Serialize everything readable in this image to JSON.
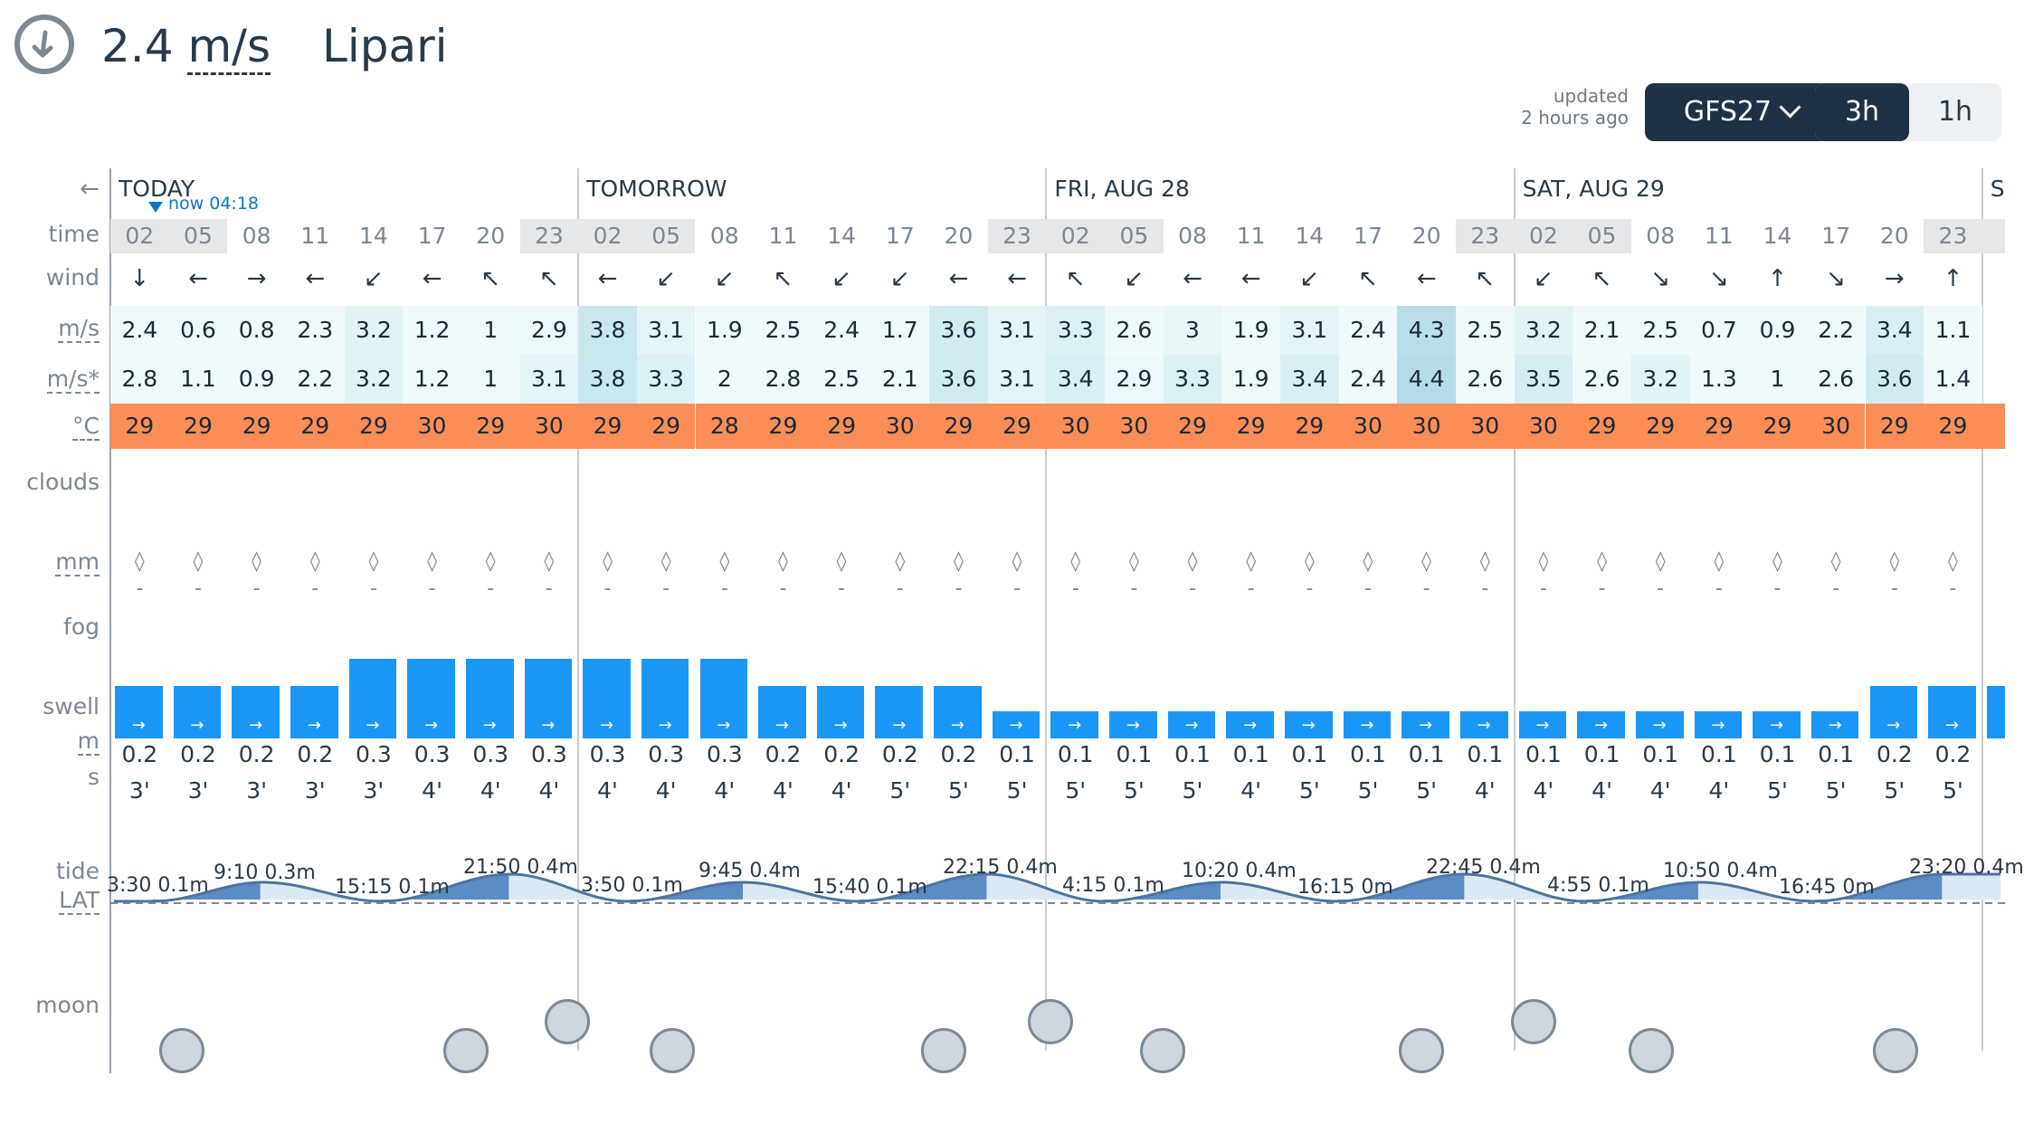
{
  "header": {
    "speed_value": "2.4",
    "speed_unit": "m/s",
    "place": "Lipari",
    "updated_line1": "updated",
    "updated_line2": "2 hours ago",
    "model": "GFS27",
    "step_3h": "3h",
    "step_1h": "1h",
    "icon": "wind-direction-icon"
  },
  "nav": {
    "back_arrow": "←",
    "now_label": "now 04:18"
  },
  "labels": {
    "time": "time",
    "wind": "wind",
    "speed": "m/s",
    "gust": "m/s*",
    "temp": "°C",
    "clouds": "clouds",
    "rain": "mm",
    "fog": "fog",
    "swell": "swell",
    "swell_height": "m",
    "swell_period": "s",
    "tide": "tide",
    "tide_ref": "LAT",
    "moon": "moon"
  },
  "days": [
    {
      "name": "TODAY"
    },
    {
      "name": "TOMORROW"
    },
    {
      "name": "FRI, AUG 28"
    },
    {
      "name": "SAT, AUG 29"
    },
    {
      "name": "S"
    }
  ],
  "columns": [
    {
      "t": "02",
      "w": "↓",
      "s": "2.4",
      "g": "2.8",
      "c": "29",
      "sh": "0.2",
      "sp": "3'",
      "shade": true
    },
    {
      "t": "05",
      "w": "←",
      "s": "0.6",
      "g": "1.1",
      "c": "29",
      "sh": "0.2",
      "sp": "3'",
      "shade": true
    },
    {
      "t": "08",
      "w": "→",
      "s": "0.8",
      "g": "0.9",
      "c": "29",
      "sh": "0.2",
      "sp": "3'",
      "shade": false
    },
    {
      "t": "11",
      "w": "←",
      "s": "2.3",
      "g": "2.2",
      "c": "29",
      "sh": "0.2",
      "sp": "3'",
      "shade": false
    },
    {
      "t": "14",
      "w": "↙",
      "s": "3.2",
      "g": "3.2",
      "c": "29",
      "sh": "0.3",
      "sp": "3'",
      "shade": false
    },
    {
      "t": "17",
      "w": "←",
      "s": "1.2",
      "g": "1.2",
      "c": "30",
      "sh": "0.3",
      "sp": "4'",
      "shade": false
    },
    {
      "t": "20",
      "w": "↖",
      "s": "1",
      "g": "1",
      "c": "29",
      "sh": "0.3",
      "sp": "4'",
      "shade": false
    },
    {
      "t": "23",
      "w": "↖",
      "s": "2.9",
      "g": "3.1",
      "c": "30",
      "sh": "0.3",
      "sp": "4'",
      "shade": true
    },
    {
      "t": "02",
      "w": "←",
      "s": "3.8",
      "g": "3.8",
      "c": "29",
      "sh": "0.3",
      "sp": "4'",
      "shade": true
    },
    {
      "t": "05",
      "w": "↙",
      "s": "3.1",
      "g": "3.3",
      "c": "29",
      "sh": "0.3",
      "sp": "4'",
      "shade": true
    },
    {
      "t": "08",
      "w": "↙",
      "s": "1.9",
      "g": "2",
      "c": "28",
      "sh": "0.3",
      "sp": "4'",
      "shade": false
    },
    {
      "t": "11",
      "w": "↖",
      "s": "2.5",
      "g": "2.8",
      "c": "29",
      "sh": "0.2",
      "sp": "4'",
      "shade": false
    },
    {
      "t": "14",
      "w": "↙",
      "s": "2.4",
      "g": "2.5",
      "c": "29",
      "sh": "0.2",
      "sp": "4'",
      "shade": false
    },
    {
      "t": "17",
      "w": "↙",
      "s": "1.7",
      "g": "2.1",
      "c": "30",
      "sh": "0.2",
      "sp": "5'",
      "shade": false
    },
    {
      "t": "20",
      "w": "←",
      "s": "3.6",
      "g": "3.6",
      "c": "29",
      "sh": "0.2",
      "sp": "5'",
      "shade": false
    },
    {
      "t": "23",
      "w": "←",
      "s": "3.1",
      "g": "3.1",
      "c": "29",
      "sh": "0.1",
      "sp": "5'",
      "shade": true
    },
    {
      "t": "02",
      "w": "↖",
      "s": "3.3",
      "g": "3.4",
      "c": "30",
      "sh": "0.1",
      "sp": "5'",
      "shade": true
    },
    {
      "t": "05",
      "w": "↙",
      "s": "2.6",
      "g": "2.9",
      "c": "30",
      "sh": "0.1",
      "sp": "5'",
      "shade": true
    },
    {
      "t": "08",
      "w": "←",
      "s": "3",
      "g": "3.3",
      "c": "29",
      "sh": "0.1",
      "sp": "5'",
      "shade": false
    },
    {
      "t": "11",
      "w": "←",
      "s": "1.9",
      "g": "1.9",
      "c": "29",
      "sh": "0.1",
      "sp": "4'",
      "shade": false
    },
    {
      "t": "14",
      "w": "↙",
      "s": "3.1",
      "g": "3.4",
      "c": "29",
      "sh": "0.1",
      "sp": "5'",
      "shade": false
    },
    {
      "t": "17",
      "w": "↖",
      "s": "2.4",
      "g": "2.4",
      "c": "30",
      "sh": "0.1",
      "sp": "5'",
      "shade": false
    },
    {
      "t": "20",
      "w": "←",
      "s": "4.3",
      "g": "4.4",
      "c": "30",
      "sh": "0.1",
      "sp": "5'",
      "shade": false
    },
    {
      "t": "23",
      "w": "↖",
      "s": "2.5",
      "g": "2.6",
      "c": "30",
      "sh": "0.1",
      "sp": "4'",
      "shade": true
    },
    {
      "t": "02",
      "w": "↙",
      "s": "3.2",
      "g": "3.5",
      "c": "30",
      "sh": "0.1",
      "sp": "4'",
      "shade": true
    },
    {
      "t": "05",
      "w": "↖",
      "s": "2.1",
      "g": "2.6",
      "c": "29",
      "sh": "0.1",
      "sp": "4'",
      "shade": true
    },
    {
      "t": "08",
      "w": "↘",
      "s": "2.5",
      "g": "3.2",
      "c": "29",
      "sh": "0.1",
      "sp": "4'",
      "shade": false
    },
    {
      "t": "11",
      "w": "↘",
      "s": "0.7",
      "g": "1.3",
      "c": "29",
      "sh": "0.1",
      "sp": "4'",
      "shade": false
    },
    {
      "t": "14",
      "w": "↑",
      "s": "0.9",
      "g": "1",
      "c": "29",
      "sh": "0.1",
      "sp": "5'",
      "shade": false
    },
    {
      "t": "17",
      "w": "↘",
      "s": "2.2",
      "g": "2.6",
      "c": "30",
      "sh": "0.1",
      "sp": "5'",
      "shade": false
    },
    {
      "t": "20",
      "w": "→",
      "s": "3.4",
      "g": "3.6",
      "c": "29",
      "sh": "0.2",
      "sp": "5'",
      "shade": false
    },
    {
      "t": "23",
      "w": "↑",
      "s": "1.1",
      "g": "1.4",
      "c": "29",
      "sh": "0.2",
      "sp": "5'",
      "shade": true
    }
  ],
  "swell_direction": "→",
  "rain_icon": "raindrop-icon",
  "rain_value": "-",
  "tides": [
    "3:30 0.1m",
    "9:10 0.3m",
    "15:15 0.1m",
    "21:50 0.4m",
    "3:50 0.1m",
    "9:45 0.4m",
    "15:40 0.1m",
    "22:15 0.4m",
    "4:15 0.1m",
    "10:20 0.4m",
    "16:15 0m",
    "22:45 0.4m",
    "4:55 0.1m",
    "10:50 0.4m",
    "16:45 0m",
    "23:20 0.4m"
  ],
  "colors": {
    "temp_bg": "#fb8d56",
    "swell_bar": "#1a97f6",
    "accent_dark": "#1f3244",
    "tide_fill": "#5b8cc4",
    "tide_fill_light": "#dbe8f6"
  }
}
